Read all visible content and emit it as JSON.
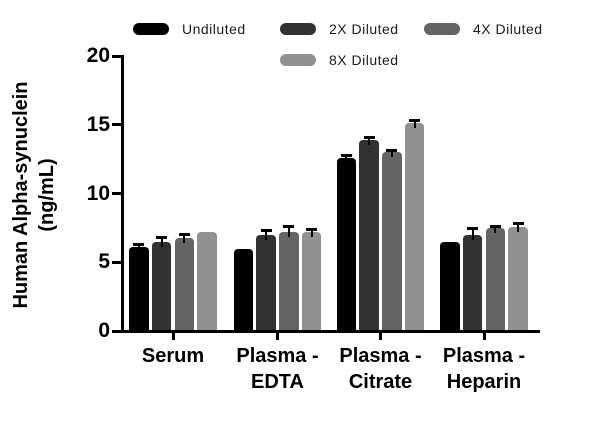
{
  "figure": {
    "y_axis_title_line1": "Human Alpha-synuclein",
    "y_axis_title_line2": "(ng/mL)"
  },
  "chart_data": {
    "type": "bar",
    "title": "",
    "xlabel": "",
    "ylabel": "Human Alpha-synuclein (ng/mL)",
    "ylim": [
      0,
      20
    ],
    "yticks": [
      0,
      5,
      10,
      15,
      20
    ],
    "grid": false,
    "legend_position": "top",
    "categories": [
      "Serum",
      "Plasma - EDTA",
      "Plasma - Citrate",
      "Plasma - Heparin"
    ],
    "category_lines": [
      [
        "Serum"
      ],
      [
        "Plasma -",
        "EDTA"
      ],
      [
        "Plasma -",
        "Citrate"
      ],
      [
        "Plasma -",
        "Heparin"
      ]
    ],
    "series": [
      {
        "name": "Undiluted",
        "color": "#000000",
        "values": [
          6.1,
          6.0,
          12.6,
          6.5
        ],
        "errors": [
          0.15,
          0,
          0.1,
          0
        ]
      },
      {
        "name": "2X Diluted",
        "color": "#323232",
        "values": [
          6.5,
          7.0,
          13.9,
          7.0
        ],
        "errors": [
          0.3,
          0.25,
          0.15,
          0.4
        ]
      },
      {
        "name": "4X Diluted",
        "color": "#646464",
        "values": [
          6.8,
          7.2,
          13.0,
          7.5
        ],
        "errors": [
          0.15,
          0.35,
          0.1,
          0.1
        ]
      },
      {
        "name": "8X Diluted",
        "color": "#919191",
        "values": [
          7.2,
          7.2,
          15.1,
          7.6
        ],
        "errors": [
          0,
          0.15,
          0.2,
          0.15
        ]
      }
    ],
    "error_bar_color": "#000000"
  }
}
